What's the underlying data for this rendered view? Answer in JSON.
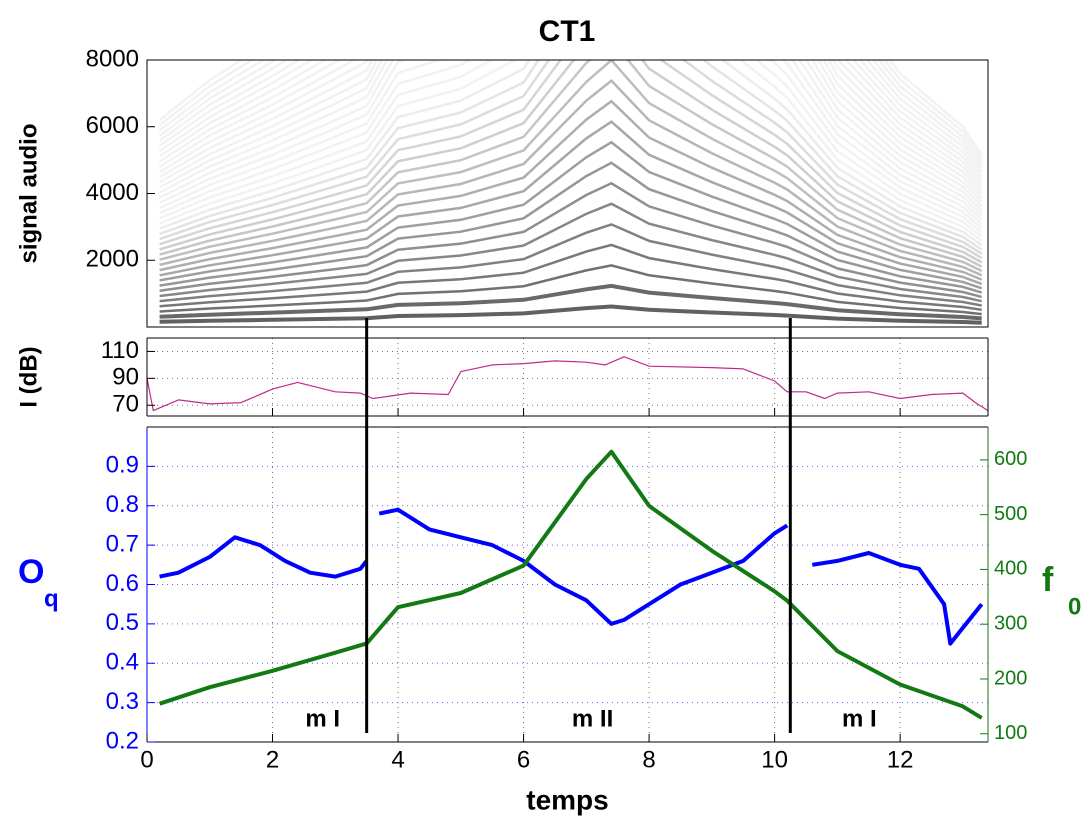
{
  "chart_data": [
    {
      "type": "spectrogram",
      "title": "CT1",
      "ylabel": "signal audio",
      "xlim": [
        0,
        13.4
      ],
      "ylim": [
        0,
        8000
      ],
      "yticks": [
        2000,
        4000,
        6000,
        8000
      ]
    },
    {
      "type": "line",
      "ylabel": "I (dB)",
      "xlim": [
        0,
        13.4
      ],
      "ylim": [
        62,
        120
      ],
      "xticks": [
        0,
        2,
        4,
        6,
        8,
        10,
        12
      ],
      "yticks": [
        70,
        90,
        110
      ],
      "grid": true,
      "series": [
        {
          "color": "#c02a8c",
          "x": [
            0,
            0.1,
            0.5,
            1,
            1.5,
            2,
            2.4,
            3,
            3.4,
            3.6,
            4.2,
            4.8,
            5,
            5.5,
            6,
            6.5,
            7,
            7.3,
            7.6,
            8,
            9,
            9.5,
            10,
            10.2,
            10.5,
            10.8,
            11,
            11.5,
            12,
            12.5,
            13,
            13.2,
            13.4
          ],
          "values": [
            90,
            66,
            74,
            71,
            72,
            82,
            87,
            80,
            79,
            75,
            79,
            78,
            95,
            100,
            101,
            103,
            102,
            100,
            106,
            99,
            98,
            97,
            88,
            80,
            80,
            75,
            79,
            80,
            75,
            78,
            79,
            72,
            66
          ]
        }
      ]
    },
    {
      "type": "line",
      "xlabel": "temps",
      "ylabel": [
        "O",
        "q"
      ],
      "y2label": [
        "f",
        "0"
      ],
      "ycolor": "#0000ff",
      "y2color": "#137a13",
      "xlim": [
        0,
        13.4
      ],
      "ylim": [
        0.2,
        1.0
      ],
      "y2lim": [
        85,
        660
      ],
      "xticks": [
        0,
        2,
        4,
        6,
        8,
        10,
        12
      ],
      "yticks": [
        0.2,
        0.3,
        0.4,
        0.5,
        0.6,
        0.7,
        0.8,
        0.9
      ],
      "y2ticks": [
        100,
        200,
        300,
        400,
        500,
        600
      ],
      "grid": true,
      "series": [
        {
          "color": "#0000ff",
          "x": [
            0.2,
            0.5,
            1,
            1.4,
            1.8,
            2.2,
            2.6,
            3,
            3.4,
            3.5,
            3.6,
            3.7,
            4,
            4.5,
            5,
            5.5,
            6,
            6.5,
            7,
            7.4,
            7.6,
            8,
            8.5,
            9,
            9.5,
            10,
            10.2,
            10.4,
            10.6,
            11,
            11.5,
            12,
            12.3,
            12.7,
            12.8,
            13,
            13.3
          ],
          "values": [
            0.62,
            0.63,
            0.67,
            0.72,
            0.7,
            0.66,
            0.63,
            0.62,
            0.64,
            0.66,
            null,
            0.78,
            0.79,
            0.74,
            0.72,
            0.7,
            0.66,
            0.6,
            0.56,
            0.5,
            0.51,
            0.55,
            0.6,
            0.63,
            0.66,
            0.73,
            0.75,
            null,
            0.65,
            0.66,
            0.68,
            0.65,
            0.64,
            0.55,
            0.45,
            0.49,
            0.55
          ]
        },
        {
          "color": "#137a13",
          "axis": "y2",
          "x": [
            0.2,
            1,
            2,
            3,
            3.5,
            4,
            5,
            6,
            7,
            7.4,
            8,
            9,
            10,
            10.2,
            11,
            12,
            13,
            13.3
          ],
          "values": [
            155,
            185,
            215,
            248,
            265,
            331,
            357,
            407,
            565,
            615,
            516,
            434,
            360,
            343,
            251,
            190,
            150,
            129
          ]
        }
      ],
      "boundaries": [
        3.5,
        10.25
      ],
      "annotations": [
        {
          "text": "m I",
          "x": 2.8
        },
        {
          "text": "m II",
          "x": 7.1
        },
        {
          "text": "m I",
          "x": 11.35
        }
      ]
    }
  ]
}
